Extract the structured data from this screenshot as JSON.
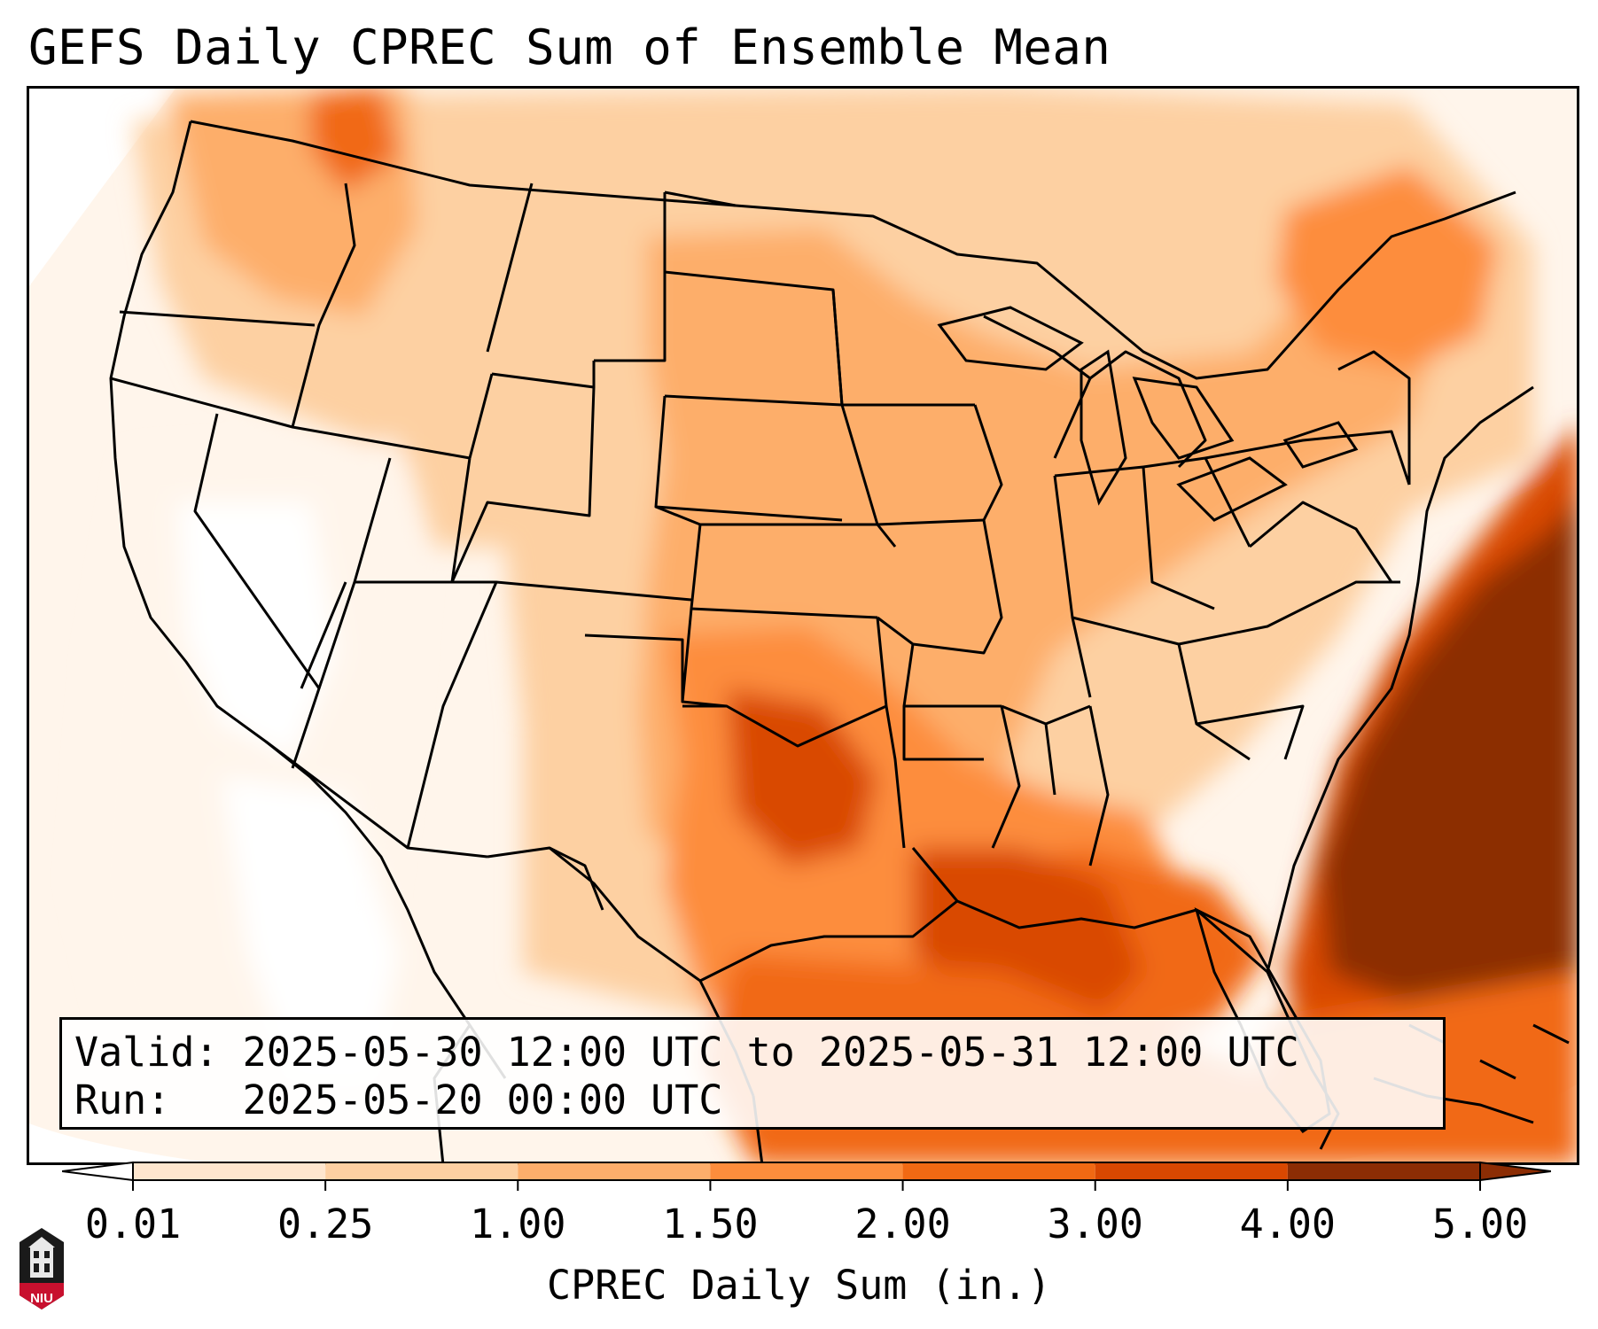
{
  "title": "GEFS Daily CPREC Sum of Ensemble Mean",
  "info": {
    "valid_line": "Valid: 2025-05-30 12:00 UTC to 2025-05-31 12:00 UTC",
    "run_line": "Run:   2025-05-20 00:00 UTC"
  },
  "colorbar": {
    "ticks": [
      "0.01",
      "0.25",
      "1.00",
      "1.50",
      "2.00",
      "3.00",
      "4.00",
      "5.00"
    ],
    "label": "CPREC Daily Sum (in.)",
    "colors": [
      "#fff5eb",
      "#fee6ce",
      "#fdd0a2",
      "#fdae6b",
      "#fd8d3c",
      "#f16913",
      "#d94801",
      "#8c2d04"
    ],
    "under_color": "#ffffff",
    "over_color": "#8c2d04"
  },
  "map": {
    "extent": "Contiguous United States",
    "projection": "Lambert conformal",
    "field": "Ensemble mean daily convective precipitation"
  },
  "logo": {
    "text": "NIU"
  }
}
